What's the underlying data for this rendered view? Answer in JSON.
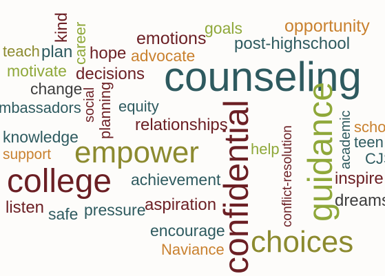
{
  "title": "Counseling word cloud",
  "colors": {
    "background": "#fdfcfa",
    "teal": "#2e5a5f",
    "dark_red": "#6b1f24",
    "olive": "#8c8a2f",
    "lime": "#8fa83a",
    "orange": "#c9812f",
    "brown": "#6a2a2a",
    "gray": "#3d3d3d"
  },
  "words": {
    "counseling": "counseling",
    "confidential": "confidential",
    "guidance": "guidance",
    "choices": "choices",
    "empower": "empower",
    "college": "college",
    "emotions": "emotions",
    "goals": "goals",
    "opportunity": "opportunity",
    "post_highschool": "post-highschool",
    "teach": "teach",
    "plan": "plan",
    "kind": "kind",
    "career": "career",
    "hope": "hope",
    "advocate": "advocate",
    "motivate": "motivate",
    "decisions": "decisions",
    "change": "change",
    "ambassadors": "mbassadors",
    "social": "social",
    "planning": "planning",
    "equity": "equity",
    "knowledge": "knowledge",
    "relationships": "relationships",
    "support": "support",
    "help": "help",
    "conflict_resolution": "conflict-resolution",
    "academic": "academic",
    "school": "scho",
    "teen": "teen",
    "cjs": "CJS",
    "inspire": "inspire",
    "achievement": "achievement",
    "listen": "listen",
    "safe": "safe",
    "pressure": "pressure",
    "aspiration": "aspiration",
    "dreams": "dreams",
    "encourage": "encourage",
    "naviance": "Naviance"
  }
}
